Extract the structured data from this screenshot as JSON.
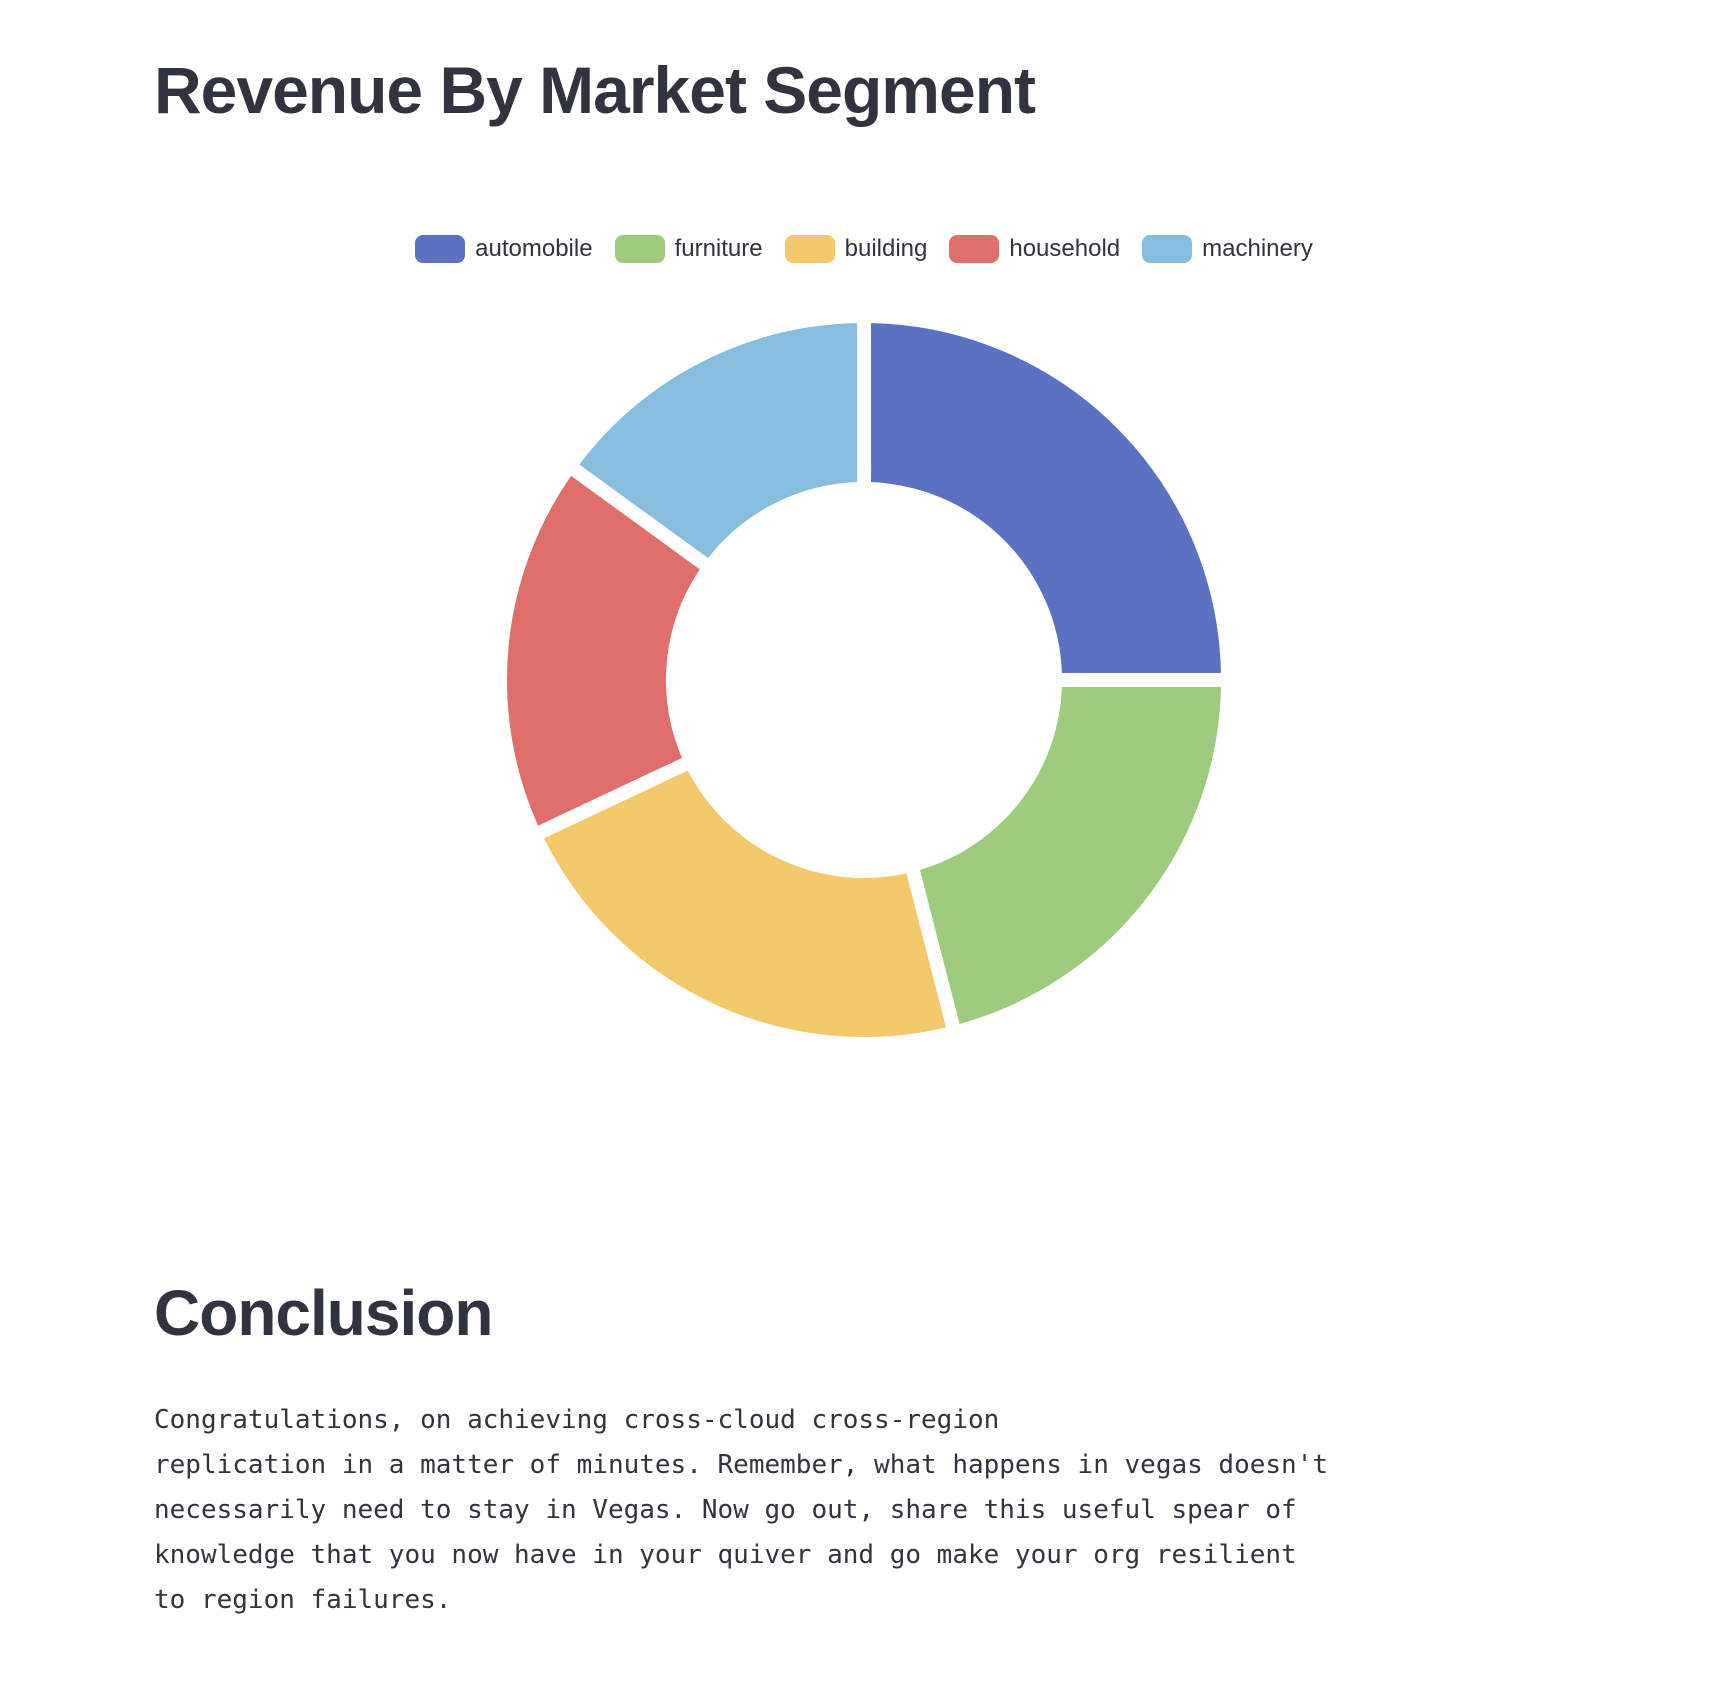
{
  "title": "Revenue By Market Segment",
  "chart_data": {
    "type": "pie",
    "variant": "donut",
    "title": "",
    "legend_position": "top-center",
    "categories": [
      "automobile",
      "furniture",
      "building",
      "household",
      "machinery"
    ],
    "values": [
      25,
      21,
      22,
      17,
      15
    ],
    "colors": [
      "#5b72c2",
      "#9ecb7e",
      "#f3c96b",
      "#e06f6c",
      "#87bedd"
    ]
  },
  "conclusion": {
    "heading": "Conclusion",
    "lines": [
      "Congratulations, on achieving cross-cloud cross-region",
      "replication in a matter of minutes. Remember, what happens in vegas doesn't",
      "necessarily need to stay in Vegas. Now go out, share this useful spear of",
      "knowledge that you now have in your quiver and go make your org resilient",
      "to region failures."
    ]
  }
}
